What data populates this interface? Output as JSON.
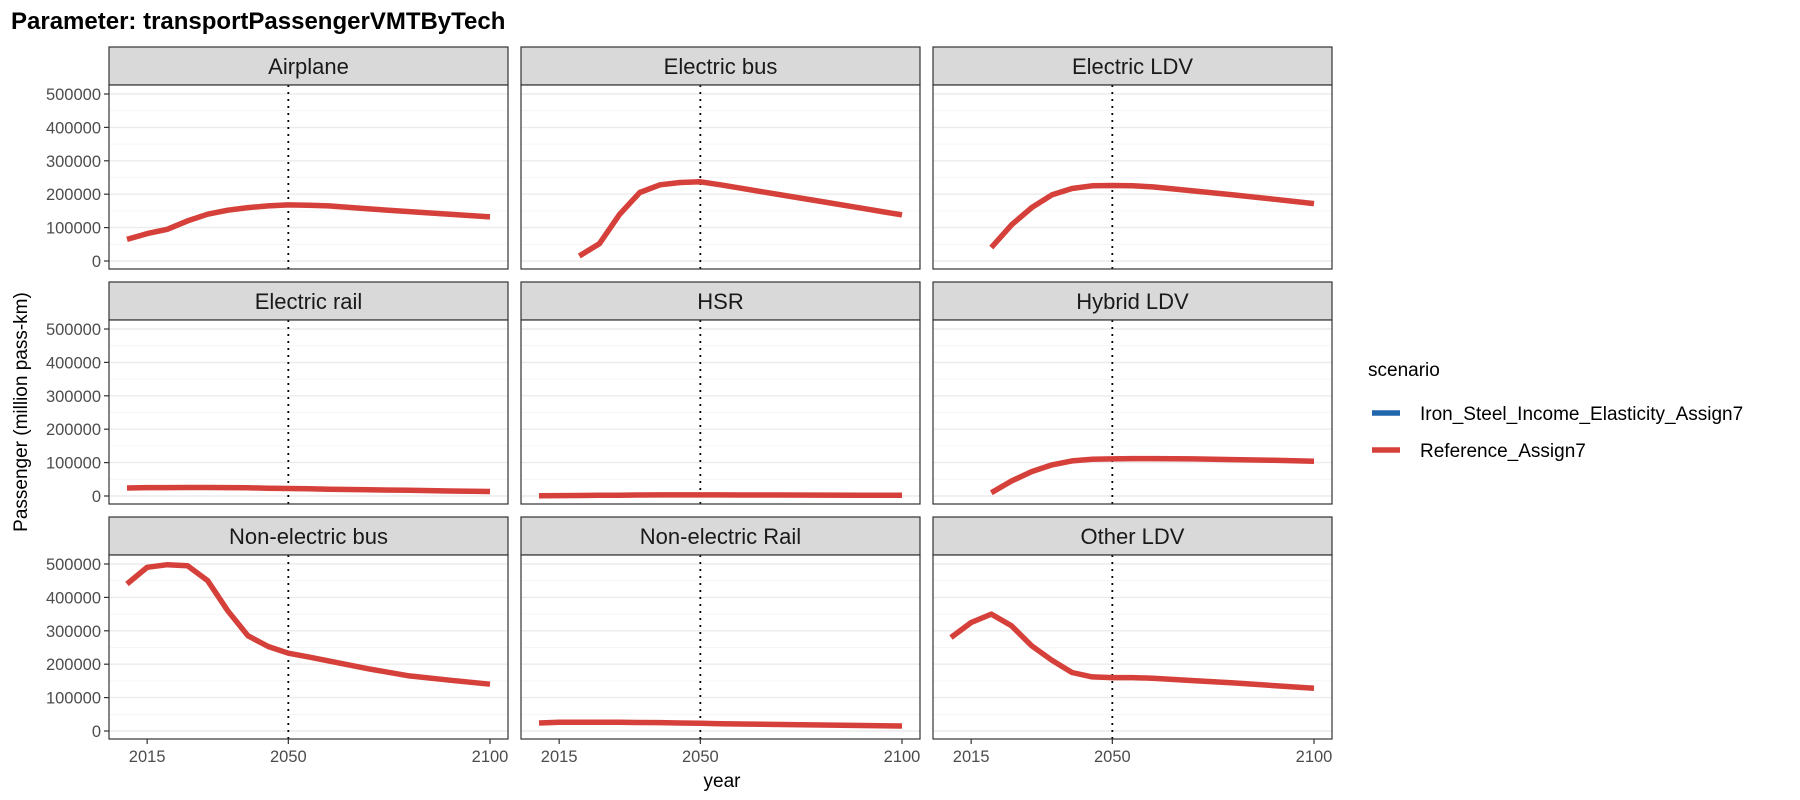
{
  "chart_data": {
    "type": "line",
    "title": "Parameter: transportPassengerVMTByTech",
    "xlabel": "year",
    "ylabel": "Passenger (million pass-km)",
    "x_ticks": [
      2015,
      2050,
      2100
    ],
    "y_ticks": [
      0,
      100000,
      200000,
      300000,
      400000,
      500000
    ],
    "xlim": [
      2010,
      2100
    ],
    "ylim": [
      0,
      500000
    ],
    "reference_line_x": 2050,
    "grid": true,
    "legend": {
      "title": "scenario",
      "position": "right",
      "entries": [
        {
          "name": "Iron_Steel_Income_Elasticity_Assign7",
          "color": "#2166ac"
        },
        {
          "name": "Reference_Assign7",
          "color": "#d6403a"
        }
      ]
    },
    "panels": [
      {
        "label": "Airplane",
        "x": [
          2010,
          2015,
          2020,
          2025,
          2030,
          2035,
          2040,
          2045,
          2050,
          2055,
          2060,
          2070,
          2080,
          2090,
          2100
        ],
        "series": [
          {
            "name": "Reference_Assign7",
            "values": [
              65000,
              82000,
              95000,
              120000,
              140000,
              152000,
              160000,
              165000,
              168000,
              167000,
              165000,
              156000,
              148000,
              140000,
              132000
            ]
          }
        ]
      },
      {
        "label": "Electric bus",
        "x": [
          2020,
          2025,
          2030,
          2035,
          2040,
          2045,
          2050,
          2055,
          2060,
          2070,
          2080,
          2090,
          2100
        ],
        "series": [
          {
            "name": "Reference_Assign7",
            "values": [
              15000,
              52000,
              140000,
              205000,
              228000,
              235000,
              237000,
              228000,
              218000,
              198000,
              178000,
              158000,
              138000
            ]
          }
        ]
      },
      {
        "label": "Electric LDV",
        "x": [
          2020,
          2025,
          2030,
          2035,
          2040,
          2045,
          2050,
          2055,
          2060,
          2070,
          2080,
          2090,
          2100
        ],
        "series": [
          {
            "name": "Reference_Assign7",
            "values": [
              40000,
              108000,
              160000,
              198000,
              217000,
              225000,
              226000,
              225000,
              222000,
              210000,
              198000,
              185000,
              172000
            ]
          }
        ]
      },
      {
        "label": "Electric rail",
        "x": [
          2010,
          2015,
          2020,
          2025,
          2030,
          2035,
          2040,
          2045,
          2050,
          2055,
          2060,
          2070,
          2080,
          2090,
          2100
        ],
        "series": [
          {
            "name": "Reference_Assign7",
            "values": [
              24000,
              25000,
              25000,
              25500,
              25500,
              25000,
              24500,
              23500,
              22500,
              21500,
              20000,
              18500,
              17000,
              15000,
              13500
            ]
          }
        ]
      },
      {
        "label": "HSR",
        "x": [
          2010,
          2015,
          2020,
          2025,
          2030,
          2035,
          2040,
          2045,
          2050,
          2055,
          2060,
          2070,
          2080,
          2090,
          2100
        ],
        "series": [
          {
            "name": "Reference_Assign7",
            "values": [
              1000,
              1200,
              1500,
              2000,
              2500,
              3000,
              3200,
              3300,
              3300,
              3200,
              3100,
              2900,
              2700,
              2500,
              2300
            ]
          }
        ]
      },
      {
        "label": "Hybrid LDV",
        "x": [
          2020,
          2025,
          2030,
          2035,
          2040,
          2045,
          2050,
          2055,
          2060,
          2070,
          2080,
          2090,
          2100
        ],
        "series": [
          {
            "name": "Reference_Assign7",
            "values": [
              10000,
              45000,
              73000,
              93000,
              105000,
              110000,
              111000,
              112000,
              112000,
              111000,
              109000,
              107000,
              104000
            ]
          }
        ]
      },
      {
        "label": "Non-electric bus",
        "x": [
          2010,
          2015,
          2020,
          2025,
          2030,
          2035,
          2040,
          2045,
          2050,
          2055,
          2060,
          2070,
          2080,
          2090,
          2100
        ],
        "series": [
          {
            "name": "Reference_Assign7",
            "values": [
              440000,
              490000,
              498000,
              495000,
              450000,
              360000,
              285000,
              253000,
              233000,
              222000,
              210000,
              186000,
              165000,
              152000,
              140000
            ]
          }
        ]
      },
      {
        "label": "Non-electric Rail",
        "x": [
          2010,
          2015,
          2020,
          2025,
          2030,
          2035,
          2040,
          2045,
          2050,
          2055,
          2060,
          2070,
          2080,
          2090,
          2100
        ],
        "series": [
          {
            "name": "Reference_Assign7",
            "values": [
              24000,
              26000,
              26000,
              26000,
              26000,
              25500,
              25000,
              24000,
              23000,
              22000,
              21000,
              19500,
              18000,
              16500,
              15000
            ]
          }
        ]
      },
      {
        "label": "Other LDV",
        "x": [
          2010,
          2015,
          2020,
          2025,
          2030,
          2035,
          2040,
          2045,
          2050,
          2055,
          2060,
          2070,
          2080,
          2090,
          2100
        ],
        "series": [
          {
            "name": "Reference_Assign7",
            "values": [
              280000,
              325000,
              350000,
              315000,
              255000,
              212000,
              175000,
              162000,
              160000,
              160000,
              158000,
              151000,
              144000,
              136000,
              128000
            ]
          }
        ]
      }
    ]
  }
}
